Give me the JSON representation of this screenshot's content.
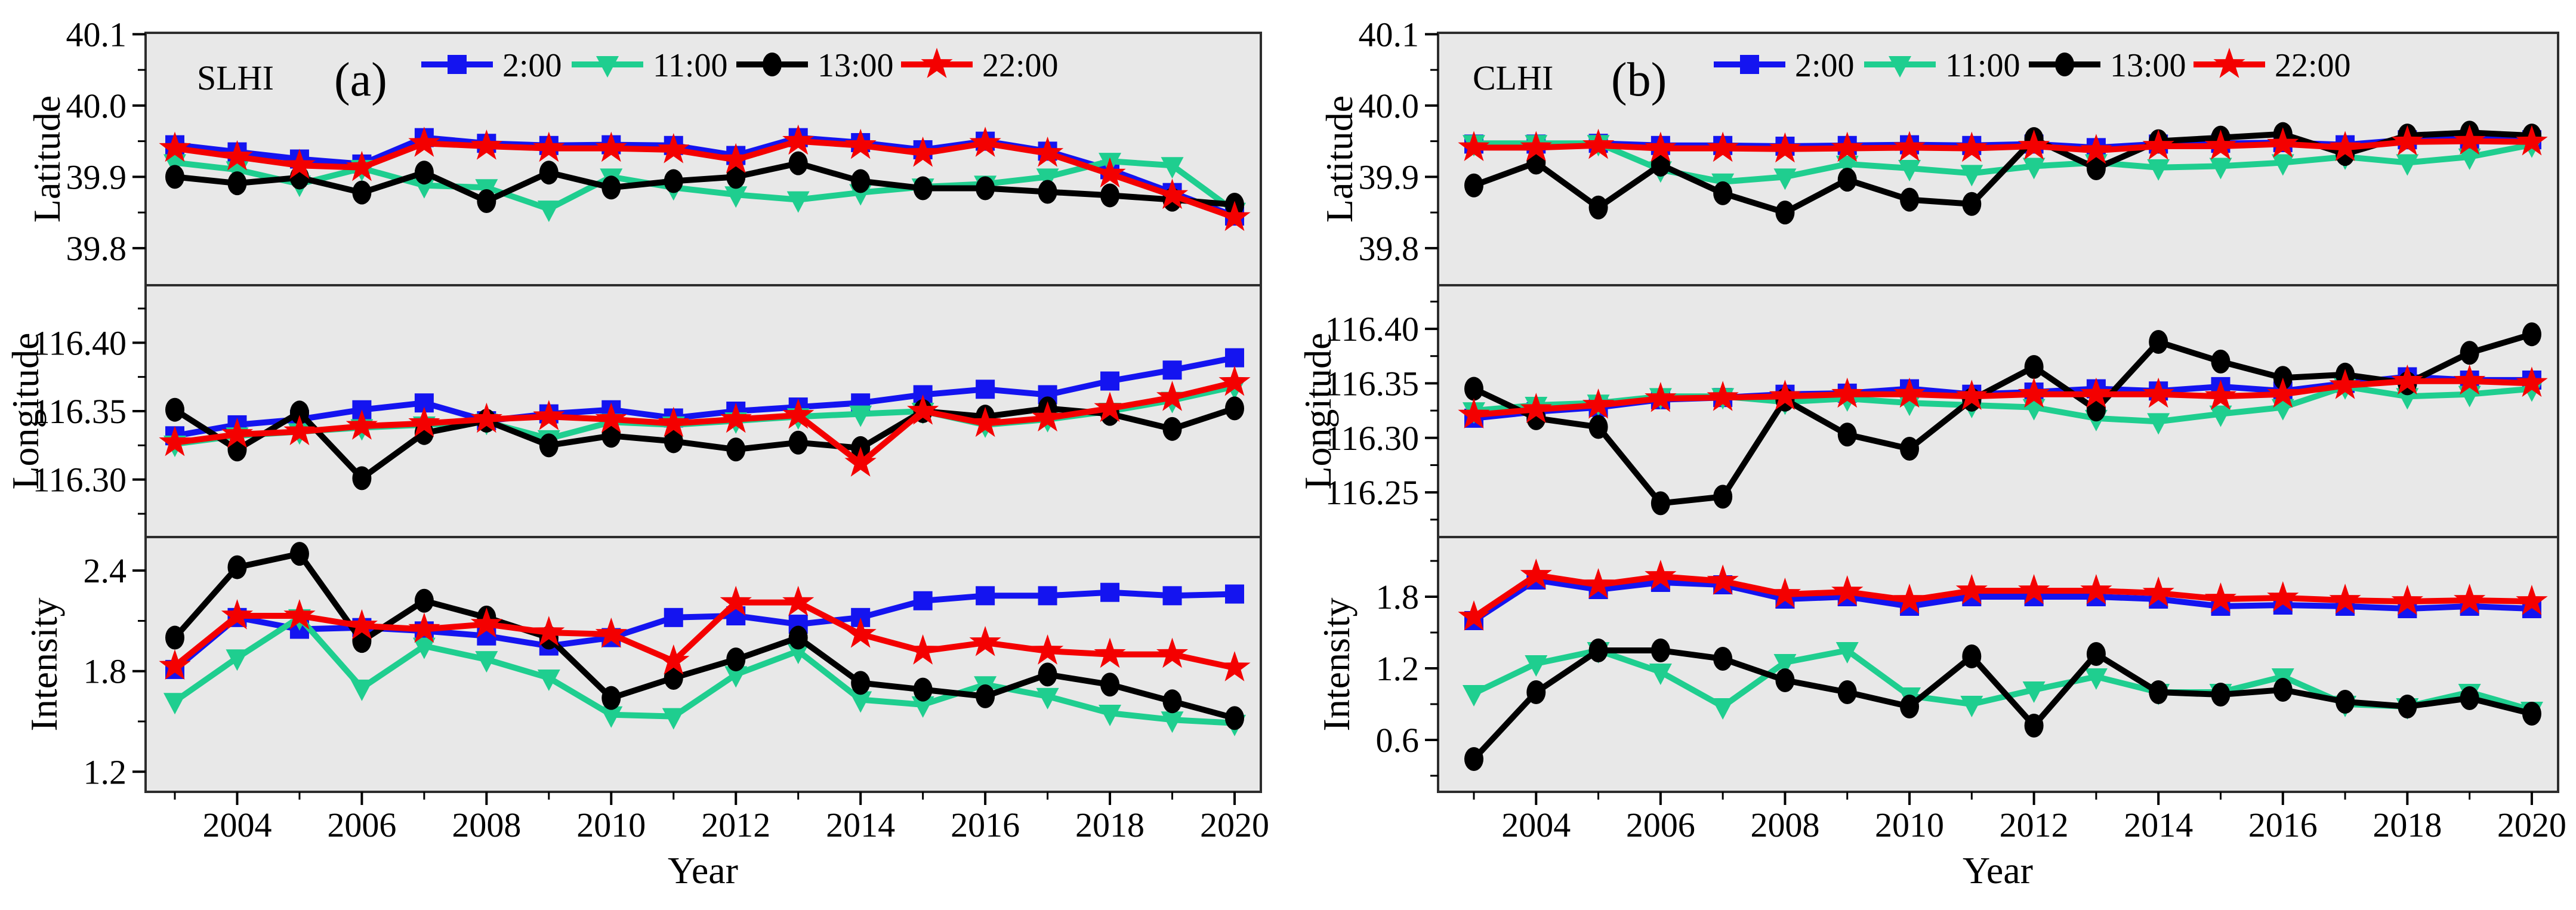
{
  "figure": {
    "background": "#ffffff",
    "plot_background": "#e8e8e8",
    "frame_color": "#2d2d2d",
    "tick_color": "#000000",
    "xlabel": "Year",
    "x_tick_labels": [
      "2004",
      "2006",
      "2008",
      "2010",
      "2012",
      "2014",
      "2016",
      "2018",
      "2020"
    ],
    "legend": [
      {
        "label": "2:00",
        "color": "#1414f0",
        "marker": "square"
      },
      {
        "label": "11:00",
        "color": "#1fce8f",
        "marker": "triangle-down"
      },
      {
        "label": "13:00",
        "color": "#000000",
        "marker": "circle"
      },
      {
        "label": "22:00",
        "color": "#f40000",
        "marker": "star"
      }
    ]
  },
  "chart_data": [
    {
      "type": "line",
      "panel_label": "SLHI",
      "panel_tag": "(a)",
      "xlabel": "Year",
      "x": [
        2003,
        2004,
        2005,
        2006,
        2007,
        2008,
        2009,
        2010,
        2011,
        2012,
        2013,
        2014,
        2015,
        2016,
        2017,
        2018,
        2019,
        2020
      ],
      "legend_position": "top-inside",
      "grid": false,
      "subplots": [
        {
          "ylabel": "Latitude",
          "ytick_labels": [
            "40.1",
            "40.0",
            "39.9",
            "39.8"
          ],
          "ylim": [
            39.748,
            40.102
          ],
          "series": [
            {
              "name": "2:00",
              "color": "#1414f0",
              "marker": "square",
              "values": [
                39.945,
                39.935,
                39.925,
                39.918,
                39.955,
                39.947,
                39.944,
                39.945,
                39.944,
                39.93,
                39.955,
                39.948,
                39.938,
                39.95,
                39.936,
                39.91,
                39.878,
                39.845
              ]
            },
            {
              "name": "11:00",
              "color": "#1fce8f",
              "marker": "triangle-down",
              "values": [
                39.92,
                39.91,
                39.89,
                39.912,
                39.888,
                39.885,
                39.855,
                39.9,
                39.885,
                39.875,
                39.868,
                39.878,
                39.886,
                39.89,
                39.9,
                39.922,
                39.916,
                39.852
              ]
            },
            {
              "name": "13:00",
              "color": "#000000",
              "marker": "circle",
              "values": [
                39.9,
                39.891,
                39.899,
                39.878,
                39.906,
                39.866,
                39.906,
                39.885,
                39.894,
                39.9,
                39.919,
                39.894,
                39.884,
                39.884,
                39.879,
                39.874,
                39.868,
                39.861
              ]
            },
            {
              "name": "22:00",
              "color": "#f40000",
              "marker": "star",
              "values": [
                39.94,
                39.928,
                39.916,
                39.913,
                39.947,
                39.943,
                39.94,
                39.94,
                39.938,
                39.924,
                39.95,
                39.944,
                39.933,
                39.947,
                39.933,
                39.904,
                39.874,
                39.843
              ]
            }
          ]
        },
        {
          "ylabel": "Longitude",
          "ytick_labels": [
            "116.40",
            "116.35",
            "116.30"
          ],
          "ylim": [
            116.258,
            116.442
          ],
          "series": [
            {
              "name": "2:00",
              "color": "#1414f0",
              "marker": "square",
              "values": [
                116.332,
                116.34,
                116.344,
                116.351,
                116.356,
                116.343,
                116.348,
                116.351,
                116.345,
                116.35,
                116.353,
                116.356,
                116.362,
                116.366,
                116.362,
                116.372,
                116.38,
                116.389
              ]
            },
            {
              "name": "11:00",
              "color": "#1fce8f",
              "marker": "triangle-down",
              "values": [
                116.326,
                116.332,
                116.335,
                116.338,
                116.34,
                116.342,
                116.33,
                116.342,
                116.34,
                116.343,
                116.346,
                116.348,
                116.35,
                116.34,
                116.344,
                116.35,
                116.358,
                116.368
              ]
            },
            {
              "name": "13:00",
              "color": "#000000",
              "marker": "circle",
              "values": [
                116.351,
                116.322,
                116.349,
                116.301,
                116.334,
                116.343,
                116.325,
                116.332,
                116.328,
                116.322,
                116.327,
                116.323,
                116.35,
                116.346,
                116.352,
                116.348,
                116.337,
                116.352
              ]
            },
            {
              "name": "22:00",
              "color": "#f40000",
              "marker": "star",
              "values": [
                116.327,
                116.333,
                116.335,
                116.339,
                116.341,
                116.344,
                116.346,
                116.344,
                116.341,
                116.344,
                116.347,
                116.312,
                116.35,
                116.341,
                116.345,
                116.352,
                116.36,
                116.371
              ]
            }
          ]
        },
        {
          "ylabel": "Intensity",
          "ytick_labels": [
            "2.4",
            "1.8",
            "1.2"
          ],
          "ylim": [
            1.08,
            2.6
          ],
          "series": [
            {
              "name": "2:00",
              "color": "#1414f0",
              "marker": "square",
              "values": [
                1.81,
                2.12,
                2.05,
                2.06,
                2.04,
                2.01,
                1.95,
                2.0,
                2.12,
                2.13,
                2.08,
                2.12,
                2.22,
                2.25,
                2.25,
                2.27,
                2.25,
                2.26
              ]
            },
            {
              "name": "11:00",
              "color": "#1fce8f",
              "marker": "triangle-down",
              "values": [
                1.62,
                1.88,
                2.12,
                1.7,
                1.95,
                1.87,
                1.76,
                1.54,
                1.53,
                1.78,
                1.92,
                1.63,
                1.6,
                1.72,
                1.65,
                1.55,
                1.51,
                1.49
              ]
            },
            {
              "name": "13:00",
              "color": "#000000",
              "marker": "circle",
              "values": [
                2.0,
                2.42,
                2.5,
                1.98,
                2.22,
                2.12,
                2.0,
                1.64,
                1.76,
                1.87,
                2.0,
                1.73,
                1.69,
                1.65,
                1.78,
                1.72,
                1.62,
                1.52
              ]
            },
            {
              "name": "22:00",
              "color": "#f40000",
              "marker": "star",
              "values": [
                1.83,
                2.13,
                2.13,
                2.07,
                2.05,
                2.08,
                2.03,
                2.02,
                1.86,
                2.21,
                2.21,
                2.02,
                1.92,
                1.97,
                1.92,
                1.9,
                1.9,
                1.82
              ]
            }
          ]
        }
      ]
    },
    {
      "type": "line",
      "panel_label": "CLHI",
      "panel_tag": "(b)",
      "xlabel": "Year",
      "x": [
        2003,
        2004,
        2005,
        2006,
        2007,
        2008,
        2009,
        2010,
        2011,
        2012,
        2013,
        2014,
        2015,
        2016,
        2017,
        2018,
        2019,
        2020
      ],
      "legend_position": "top-inside",
      "grid": false,
      "subplots": [
        {
          "ylabel": "Latitude",
          "ytick_labels": [
            "40.1",
            "40.0",
            "39.9",
            "39.8"
          ],
          "ylim": [
            39.748,
            40.102
          ],
          "series": [
            {
              "name": "2:00",
              "color": "#1414f0",
              "marker": "square",
              "values": [
                39.946,
                39.946,
                39.947,
                39.944,
                39.944,
                39.943,
                39.944,
                39.945,
                39.944,
                39.946,
                39.941,
                39.946,
                39.947,
                39.948,
                39.945,
                39.952,
                39.953,
                39.952
              ]
            },
            {
              "name": "11:00",
              "color": "#1fce8f",
              "marker": "triangle-down",
              "values": [
                39.947,
                39.947,
                39.947,
                39.91,
                39.893,
                39.9,
                39.918,
                39.912,
                39.905,
                39.915,
                39.92,
                39.913,
                39.915,
                39.92,
                39.928,
                39.92,
                39.928,
                39.945
              ]
            },
            {
              "name": "13:00",
              "color": "#000000",
              "marker": "circle",
              "values": [
                39.888,
                39.92,
                39.857,
                39.917,
                39.877,
                39.85,
                39.896,
                39.868,
                39.862,
                39.953,
                39.912,
                39.95,
                39.955,
                39.96,
                39.932,
                39.958,
                39.962,
                39.958
              ]
            },
            {
              "name": "22:00",
              "color": "#f40000",
              "marker": "star",
              "values": [
                39.941,
                39.941,
                39.944,
                39.94,
                39.94,
                39.939,
                39.94,
                39.941,
                39.94,
                39.943,
                39.937,
                39.943,
                39.943,
                39.946,
                39.941,
                39.949,
                39.95,
                39.949
              ]
            }
          ]
        },
        {
          "ylabel": "Longitude",
          "ytick_labels": [
            "116.40",
            "116.35",
            "116.30",
            "116.25"
          ],
          "ylim": [
            116.209,
            116.44
          ],
          "series": [
            {
              "name": "2:00",
              "color": "#1414f0",
              "marker": "square",
              "values": [
                116.318,
                116.324,
                116.328,
                116.335,
                116.337,
                116.34,
                116.341,
                116.345,
                116.34,
                116.342,
                116.345,
                116.343,
                116.347,
                116.343,
                116.35,
                116.356,
                116.353,
                116.353
              ]
            },
            {
              "name": "11:00",
              "color": "#1fce8f",
              "marker": "triangle-down",
              "values": [
                116.325,
                116.33,
                116.332,
                116.338,
                116.338,
                116.333,
                116.336,
                116.332,
                116.33,
                116.328,
                116.318,
                116.315,
                116.322,
                116.328,
                116.347,
                116.338,
                116.34,
                116.345
              ]
            },
            {
              "name": "13:00",
              "color": "#000000",
              "marker": "circle",
              "values": [
                116.345,
                116.318,
                116.31,
                116.24,
                116.246,
                116.335,
                116.303,
                116.29,
                116.335,
                116.365,
                116.326,
                116.388,
                116.37,
                116.355,
                116.358,
                116.35,
                116.378,
                116.395
              ]
            },
            {
              "name": "22:00",
              "color": "#f40000",
              "marker": "star",
              "values": [
                116.321,
                116.326,
                116.33,
                116.336,
                116.337,
                116.338,
                116.34,
                116.34,
                116.338,
                116.34,
                116.34,
                116.34,
                116.338,
                116.34,
                116.348,
                116.352,
                116.352,
                116.35
              ]
            }
          ]
        },
        {
          "ylabel": "Intensity",
          "ytick_labels": [
            "1.8",
            "1.2",
            "0.6"
          ],
          "ylim": [
            0.165,
            2.3
          ],
          "series": [
            {
              "name": "2:00",
              "color": "#1414f0",
              "marker": "square",
              "values": [
                1.6,
                1.94,
                1.86,
                1.92,
                1.9,
                1.78,
                1.8,
                1.72,
                1.8,
                1.8,
                1.8,
                1.78,
                1.72,
                1.73,
                1.72,
                1.7,
                1.72,
                1.7
              ]
            },
            {
              "name": "11:00",
              "color": "#1fce8f",
              "marker": "triangle-down",
              "values": [
                0.99,
                1.24,
                1.35,
                1.17,
                0.88,
                1.25,
                1.35,
                0.97,
                0.9,
                1.02,
                1.13,
                1.0,
                1.0,
                1.13,
                0.9,
                0.88,
                1.0,
                0.85
              ]
            },
            {
              "name": "13:00",
              "color": "#000000",
              "marker": "circle",
              "values": [
                0.44,
                1.0,
                1.35,
                1.35,
                1.28,
                1.1,
                1.0,
                0.88,
                1.3,
                0.72,
                1.32,
                1.0,
                0.98,
                1.02,
                0.92,
                0.88,
                0.95,
                0.82
              ]
            },
            {
              "name": "22:00",
              "color": "#f40000",
              "marker": "star",
              "values": [
                1.63,
                1.98,
                1.9,
                1.97,
                1.93,
                1.82,
                1.84,
                1.77,
                1.85,
                1.85,
                1.85,
                1.83,
                1.78,
                1.79,
                1.77,
                1.76,
                1.77,
                1.76
              ]
            }
          ]
        }
      ]
    }
  ]
}
